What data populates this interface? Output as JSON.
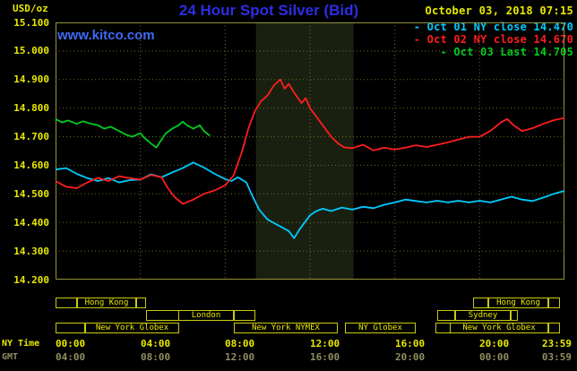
{
  "header": {
    "datetime": "October 03, 2018 07:15",
    "watermark": "www.kitco.com"
  },
  "axis": {
    "ny_label": "NY Time",
    "gmt_label": "GMT"
  },
  "legend": {
    "prefix": "-",
    "items": [
      {
        "label": "Oct 01 NY close 14.470",
        "color": "#00ccff"
      },
      {
        "label": "Oct 02 NY close 14.670",
        "color": "#ff1e1e"
      },
      {
        "label": "Oct 03 Last 14.705",
        "color": "#00cc22"
      }
    ]
  },
  "chart_data": {
    "type": "line",
    "title": "24 Hour Spot Silver (Bid)",
    "ylabel": "USD/oz",
    "ylim": [
      14.2,
      15.1
    ],
    "ytick_step": 0.1,
    "ytick_labels": [
      "15.100",
      "15.000",
      "14.900",
      "14.800",
      "14.700",
      "14.600",
      "14.500",
      "14.400",
      "14.300",
      "14.200"
    ],
    "x_tick_hours": [
      0,
      4,
      8,
      12,
      16,
      20,
      23.983
    ],
    "x_grid_hours": [
      0,
      4,
      8,
      12,
      16,
      20
    ],
    "ny_tick_labels": [
      "00:00",
      "04:00",
      "08:00",
      "12:00",
      "16:00",
      "20:00",
      "23:59"
    ],
    "gmt_tick_labels": [
      "04:00",
      "08:00",
      "12:00",
      "16:00",
      "20:00",
      "00:00",
      "03:59"
    ],
    "highlight_band_hours": [
      9.45,
      14.05
    ],
    "colors": {
      "background": "#000000",
      "grid": "#6f6f2a",
      "frame": "#93933a",
      "band": "#1a2010",
      "axis_text": "#e9e900",
      "gmt_text": "#8e8e62",
      "session_border": "#c9c90f",
      "title_blue": "#2d2de4",
      "watermark_blue": "#3f6af5"
    },
    "series": [
      {
        "name": "Oct 01 NY close 14.470",
        "color": "#00ccff",
        "x": [
          0,
          0.5,
          1,
          1.5,
          2,
          2.5,
          3,
          3.5,
          4,
          4.5,
          5,
          5.5,
          6,
          6.5,
          7,
          7.5,
          8,
          8.3,
          8.6,
          9,
          9.3,
          9.6,
          10,
          10.5,
          11,
          11.25,
          11.5,
          11.75,
          12,
          12.3,
          12.6,
          13,
          13.5,
          14,
          14.5,
          15,
          15.5,
          16,
          16.5,
          17,
          17.5,
          18,
          18.5,
          19,
          19.5,
          20,
          20.5,
          21,
          21.5,
          22,
          22.5,
          23,
          23.5,
          23.98
        ],
        "values": [
          14.585,
          14.59,
          14.57,
          14.555,
          14.545,
          14.555,
          14.54,
          14.548,
          14.55,
          14.568,
          14.558,
          14.575,
          14.59,
          14.61,
          14.592,
          14.57,
          14.552,
          14.545,
          14.558,
          14.54,
          14.49,
          14.445,
          14.41,
          14.39,
          14.37,
          14.345,
          14.375,
          14.4,
          14.425,
          14.44,
          14.448,
          14.44,
          14.452,
          14.445,
          14.455,
          14.45,
          14.462,
          14.47,
          14.48,
          14.475,
          14.47,
          14.476,
          14.47,
          14.476,
          14.47,
          14.476,
          14.47,
          14.48,
          14.49,
          14.48,
          14.475,
          14.487,
          14.5,
          14.51
        ]
      },
      {
        "name": "Oct 02 NY close 14.670",
        "color": "#ff1e1e",
        "x": [
          0,
          0.5,
          1,
          1.5,
          2,
          2.5,
          3,
          3.5,
          4,
          4.5,
          5,
          5.3,
          5.6,
          6,
          6.5,
          7,
          7.5,
          8,
          8.4,
          8.8,
          9.1,
          9.4,
          9.7,
          10,
          10.3,
          10.6,
          10.8,
          11,
          11.2,
          11.4,
          11.6,
          11.8,
          12,
          12.3,
          12.6,
          13,
          13.3,
          13.6,
          14,
          14.5,
          15,
          15.5,
          16,
          16.5,
          17,
          17.5,
          18,
          18.5,
          19,
          19.5,
          20,
          20.5,
          21,
          21.3,
          21.6,
          22,
          22.5,
          23,
          23.5,
          23.98
        ],
        "values": [
          14.545,
          14.525,
          14.52,
          14.54,
          14.556,
          14.545,
          14.562,
          14.555,
          14.55,
          14.566,
          14.558,
          14.52,
          14.49,
          14.465,
          14.48,
          14.5,
          14.512,
          14.53,
          14.565,
          14.65,
          14.73,
          14.79,
          14.825,
          14.845,
          14.88,
          14.9,
          14.868,
          14.885,
          14.86,
          14.838,
          14.818,
          14.835,
          14.8,
          14.77,
          14.74,
          14.7,
          14.678,
          14.663,
          14.66,
          14.672,
          14.652,
          14.662,
          14.655,
          14.662,
          14.67,
          14.664,
          14.672,
          14.68,
          14.69,
          14.7,
          14.7,
          14.72,
          14.75,
          14.762,
          14.74,
          14.72,
          14.73,
          14.745,
          14.758,
          14.765
        ]
      },
      {
        "name": "Oct 03 Last 14.705",
        "color": "#00cc22",
        "x": [
          0,
          0.3,
          0.6,
          1,
          1.3,
          1.6,
          2,
          2.3,
          2.6,
          3,
          3.3,
          3.6,
          4,
          4.2,
          4.5,
          4.75,
          5,
          5.2,
          5.5,
          5.8,
          6,
          6.2,
          6.5,
          6.8,
          7,
          7.25
        ],
        "values": [
          14.762,
          14.75,
          14.757,
          14.745,
          14.754,
          14.747,
          14.74,
          14.728,
          14.735,
          14.72,
          14.708,
          14.7,
          14.712,
          14.695,
          14.676,
          14.662,
          14.69,
          14.712,
          14.728,
          14.74,
          14.753,
          14.74,
          14.728,
          14.74,
          14.72,
          14.705
        ]
      }
    ],
    "market_sessions": [
      {
        "row": 0,
        "label": "Hong Kong",
        "start": 0.0,
        "end": 4.25,
        "label_start": 1.0,
        "label_end": 3.8
      },
      {
        "row": 0,
        "label": "Hong Kong",
        "start": 19.7,
        "end": 23.8,
        "label_start": 20.4,
        "label_end": 23.25
      },
      {
        "row": 1,
        "label": "London",
        "start": 4.25,
        "end": 9.4,
        "label_start": 5.8,
        "label_end": 8.4
      },
      {
        "row": 1,
        "label": "Sydney",
        "start": 18.0,
        "end": 21.8,
        "label_start": 18.85,
        "label_end": 21.45
      },
      {
        "row": 2,
        "label": "New York Globex",
        "start": 0.0,
        "end": 5.85,
        "label_start": 1.4,
        "label_end": 5.85
      },
      {
        "row": 2,
        "label": "New York NYMEX",
        "start": 8.4,
        "end": 13.3,
        "label_start": 8.4,
        "label_end": 13.3
      },
      {
        "row": 2,
        "label": "NY Globex",
        "start": 13.65,
        "end": 17.0,
        "label_start": 13.65,
        "label_end": 17.0
      },
      {
        "row": 2,
        "label": "New York Globex",
        "start": 17.9,
        "end": 23.8,
        "label_start": 18.6,
        "label_end": 23.25
      }
    ]
  }
}
